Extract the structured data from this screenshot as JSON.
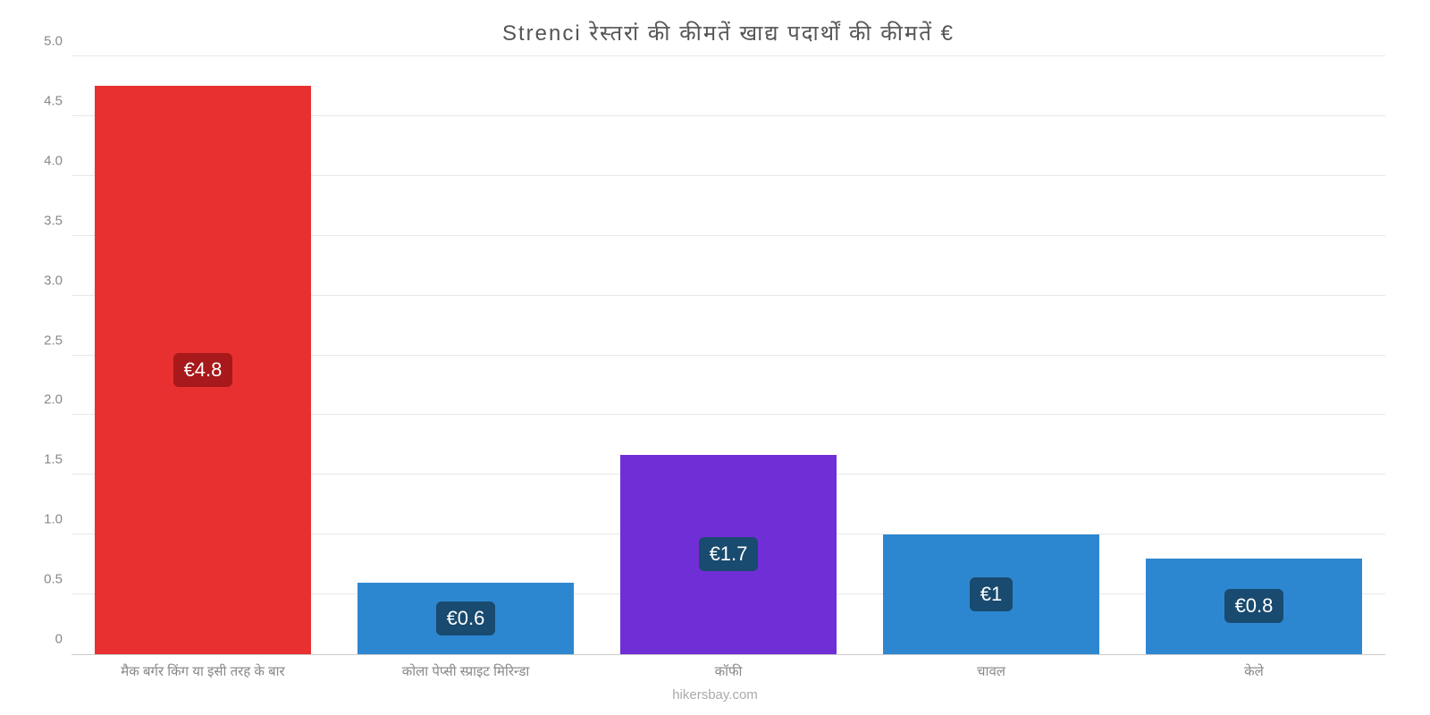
{
  "chart": {
    "type": "bar",
    "title": "Strenci रेस्तरां की कीमतें खाद्य पदार्थों की कीमतें €",
    "title_fontsize": 24,
    "title_color": "#555555",
    "background_color": "#ffffff",
    "grid_color": "#e8e8e8",
    "axis_label_color": "#888888",
    "axis_label_fontsize": 15,
    "categories": [
      "मैक बर्गर किंग या इसी तरह के बार",
      "कोला पेप्सी स्प्राइट मिरिन्डा",
      "कॉफी",
      "चावल",
      "केले"
    ],
    "values": [
      4.75,
      0.6,
      1.67,
      1.0,
      0.8
    ],
    "value_labels": [
      "€4.8",
      "€0.6",
      "€1.7",
      "€1",
      "€0.8"
    ],
    "bar_colors": [
      "#e93030",
      "#2d87d0",
      "#6f2ed6",
      "#2d87d0",
      "#2d87d0"
    ],
    "badge_colors": [
      "#a7191a",
      "#194a6f",
      "#194a6f",
      "#194a6f",
      "#194a6f"
    ],
    "badge_text_color": "#ffffff",
    "badge_fontsize": 22,
    "ylim": [
      0,
      5.0
    ],
    "ytick_step": 0.5,
    "yticks": [
      "0",
      "0.5",
      "1.0",
      "1.5",
      "2.0",
      "2.5",
      "3.0",
      "3.5",
      "4.0",
      "4.5",
      "5.0"
    ],
    "bar_width": 0.82,
    "attribution": "hikersbay.com",
    "attribution_color": "#aaaaaa",
    "attribution_fontsize": 15
  }
}
